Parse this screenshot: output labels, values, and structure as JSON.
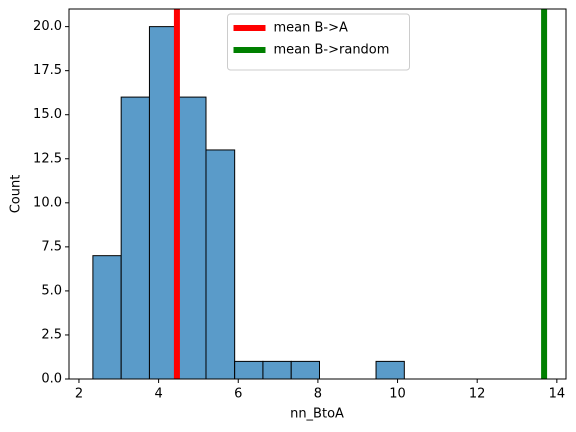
{
  "chart_data": {
    "type": "histogram",
    "xlabel": "nn_BtoA",
    "ylabel": "Count",
    "bins": [
      2.35,
      3.06,
      3.77,
      4.48,
      5.19,
      5.91,
      6.62,
      7.33,
      8.04,
      8.75,
      9.46,
      10.17
    ],
    "values": [
      7,
      16,
      20,
      16,
      13,
      1,
      1,
      1,
      0,
      0,
      1
    ],
    "color": "#5a9bc9",
    "xlim": [
      1.75,
      14.23
    ],
    "ylim": [
      0,
      21
    ],
    "xticks": [
      2,
      4,
      6,
      8,
      10,
      12,
      14
    ],
    "yticks": [
      {
        "value": 0,
        "label": "0.0"
      },
      {
        "value": 2.5,
        "label": "2.5"
      },
      {
        "value": 5,
        "label": "5.0"
      },
      {
        "value": 7.5,
        "label": "7.5"
      },
      {
        "value": 10,
        "label": "10.0"
      },
      {
        "value": 12.5,
        "label": "12.5"
      },
      {
        "value": 15,
        "label": "15.0"
      },
      {
        "value": 17.5,
        "label": "17.5"
      },
      {
        "value": 20,
        "label": "20.0"
      }
    ],
    "vlines": [
      {
        "name": "mean B->A",
        "value": 4.46,
        "color": "#ff0000"
      },
      {
        "name": "mean B->random",
        "value": 13.68,
        "color": "#008000"
      }
    ],
    "legend": "upper center"
  }
}
